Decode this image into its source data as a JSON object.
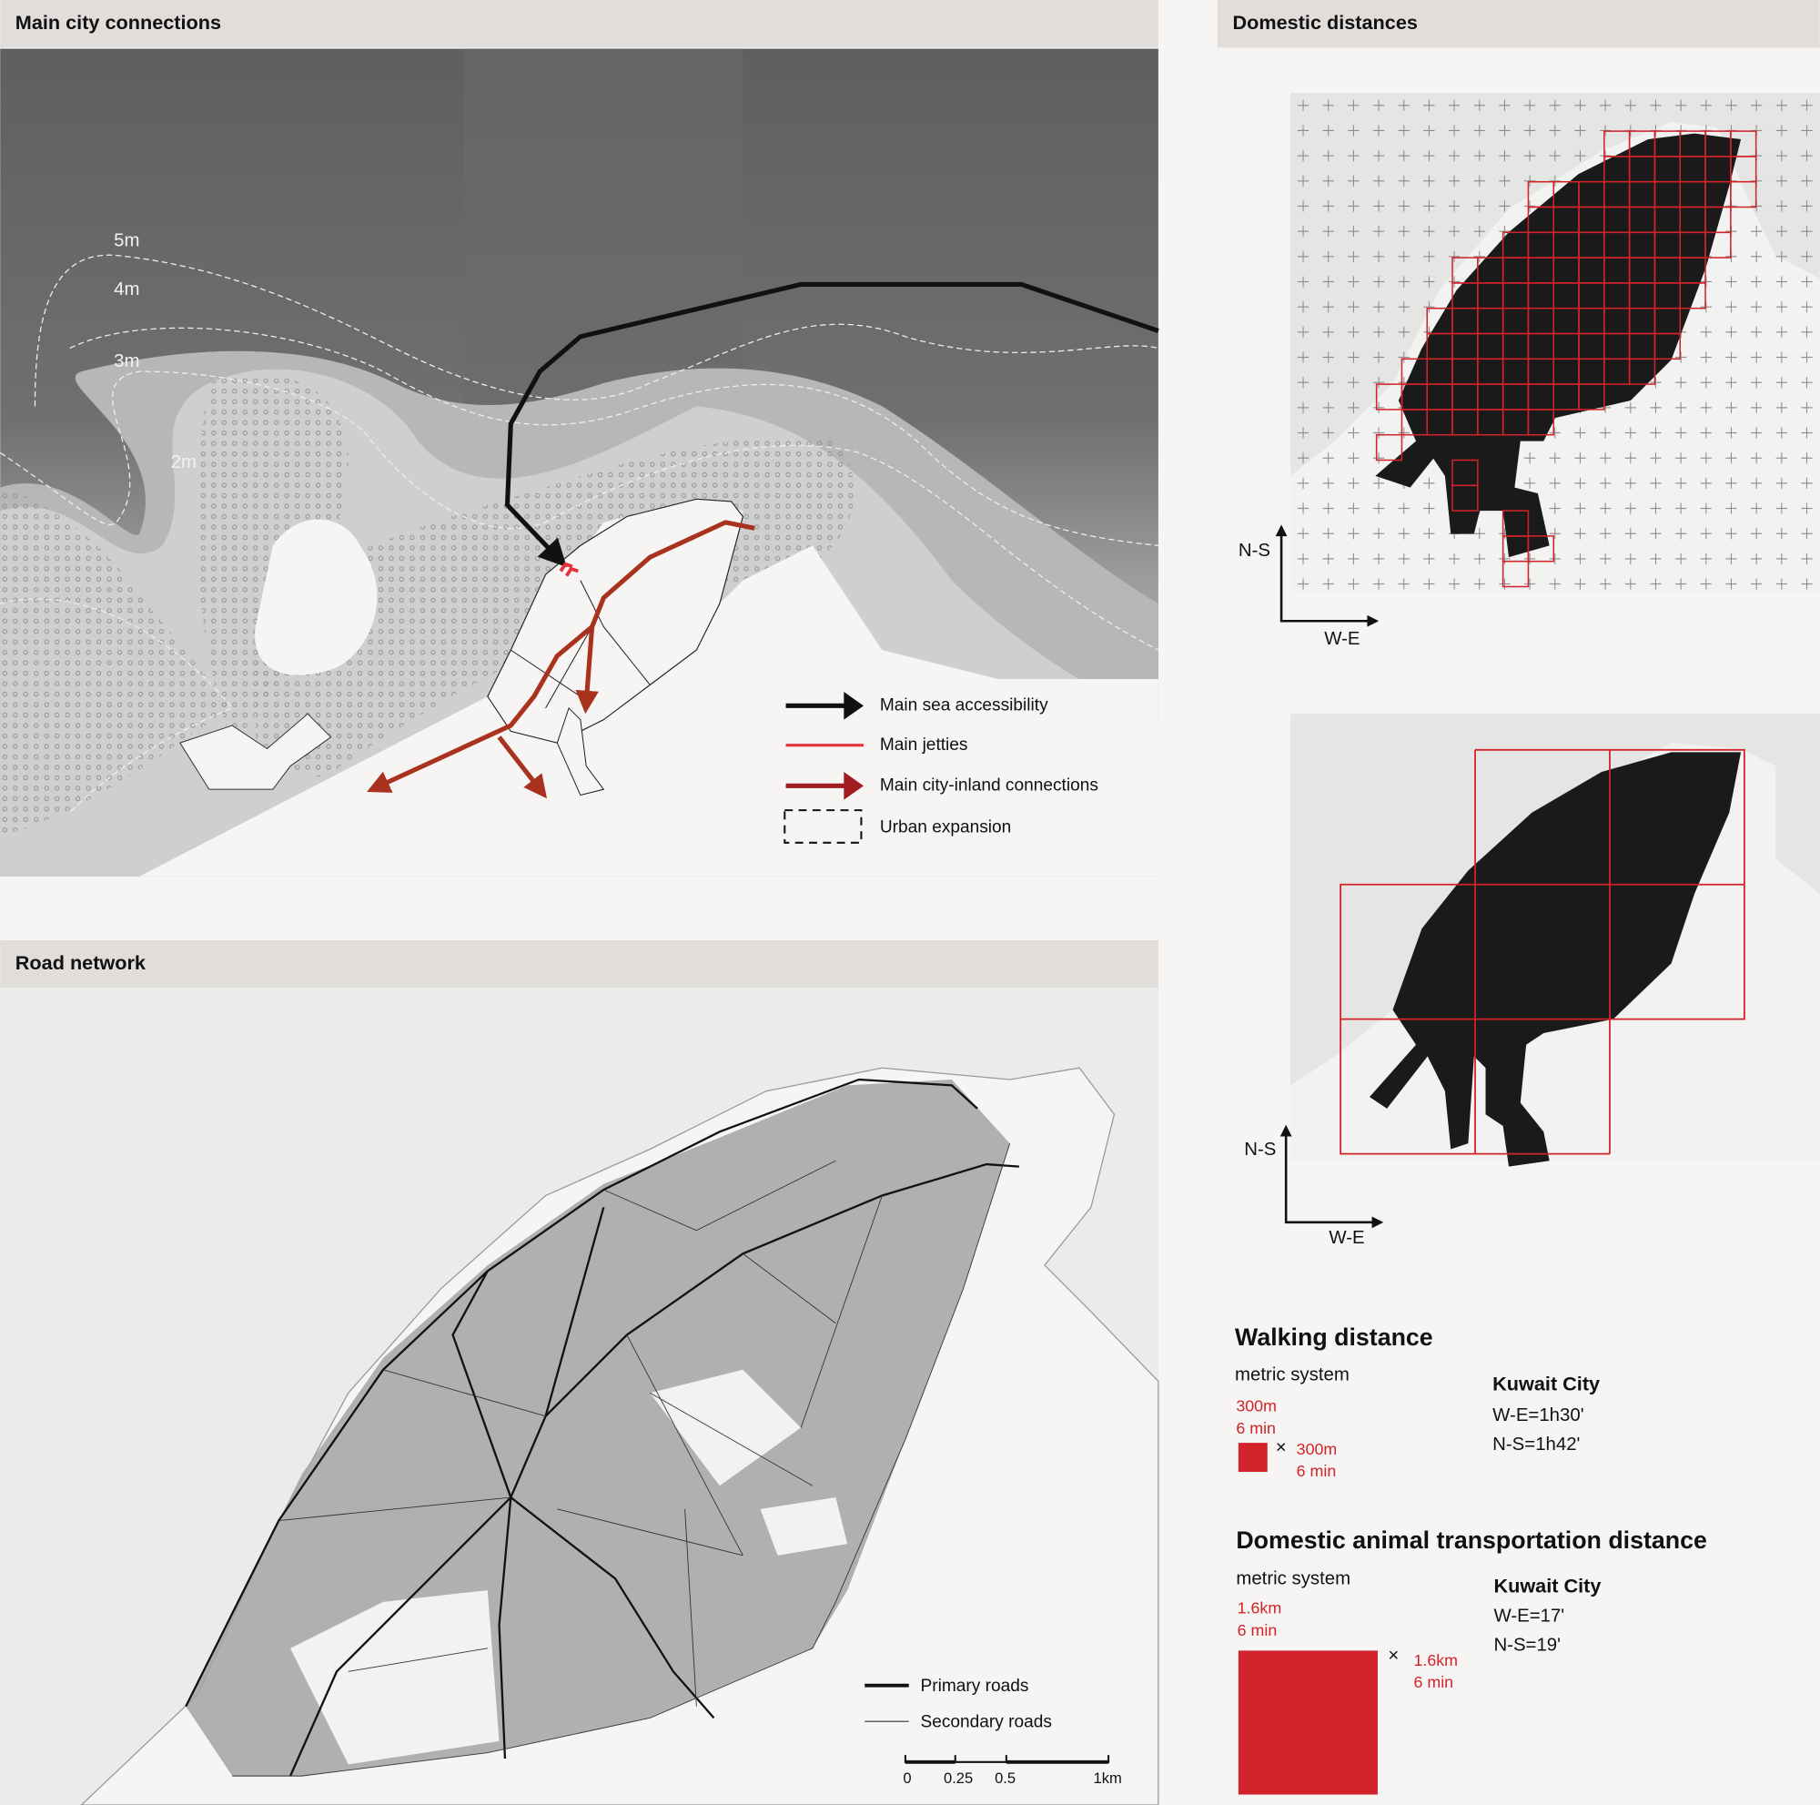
{
  "colors": {
    "accent_red": "#d2232b",
    "connection_red": "#a8321e",
    "header_bg": "#e1dddb",
    "sea_dark": "#5c5c5c",
    "land": "#f6f5f3",
    "city_black": "#1a1a1a",
    "block_grey": "#a3a3a3"
  },
  "connections": {
    "title": "Main city connections",
    "contours": [
      "5m",
      "4m",
      "3m",
      "2m"
    ],
    "legend": [
      {
        "label": "Main sea accessibility",
        "icon": "black-arrow-icon"
      },
      {
        "label": "Main jetties",
        "icon": "red-line-icon"
      },
      {
        "label": "Main city-inland connections",
        "icon": "dark-red-arrow-icon"
      },
      {
        "label": "Urban expansion",
        "icon": "dashed-box-icon"
      }
    ]
  },
  "roads": {
    "title": "Road network",
    "legend": [
      {
        "label": "Primary roads"
      },
      {
        "label": "Secondary roads"
      }
    ],
    "scale": {
      "ticks": [
        "0",
        "0.25",
        "0.5",
        "1km"
      ]
    }
  },
  "distances": {
    "title": "Domestic distances",
    "axis_ns": "N-S",
    "axis_we": "W-E",
    "walking": {
      "title": "Walking distance",
      "system": "metric system",
      "side_a": [
        "300m",
        "6 min"
      ],
      "times": "×",
      "side_b": [
        "300m",
        "6 min"
      ],
      "city": "Kuwait City",
      "we": "W-E=1h30'",
      "ns": "N-S=1h42'"
    },
    "animal": {
      "title": "Domestic animal transportation distance",
      "system": "metric system",
      "side_a": [
        "1.6km",
        "6 min"
      ],
      "times": "×",
      "side_b": [
        "1.6km",
        "6 min"
      ],
      "city": "Kuwait City",
      "we": "W-E=17'",
      "ns": "N-S=19'"
    }
  }
}
